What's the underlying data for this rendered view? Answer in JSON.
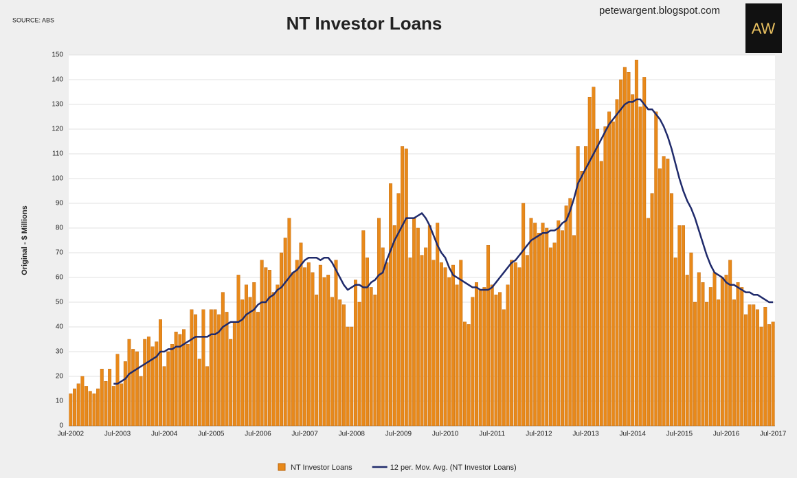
{
  "header": {
    "source": "SOURCE: ABS",
    "website": "petewargent.blogspot.com",
    "logo": "AW"
  },
  "chart_data": {
    "type": "bar",
    "title": "NT Investor Loans",
    "y_label": "Original - $ Millions",
    "categories": [
      "Jul-2002",
      null,
      null,
      null,
      null,
      null,
      null,
      null,
      null,
      null,
      null,
      null,
      "Jul-2003",
      null,
      null,
      null,
      null,
      null,
      null,
      null,
      null,
      null,
      null,
      null,
      "Jul-2004",
      null,
      null,
      null,
      null,
      null,
      null,
      null,
      null,
      null,
      null,
      null,
      "Jul-2005",
      null,
      null,
      null,
      null,
      null,
      null,
      null,
      null,
      null,
      null,
      null,
      "Jul-2006",
      null,
      null,
      null,
      null,
      null,
      null,
      null,
      null,
      null,
      null,
      null,
      "Jul-2007",
      null,
      null,
      null,
      null,
      null,
      null,
      null,
      null,
      null,
      null,
      null,
      "Jul-2008",
      null,
      null,
      null,
      null,
      null,
      null,
      null,
      null,
      null,
      null,
      null,
      "Jul-2009",
      null,
      null,
      null,
      null,
      null,
      null,
      null,
      null,
      null,
      null,
      null,
      "Jul-2010",
      null,
      null,
      null,
      null,
      null,
      null,
      null,
      null,
      null,
      null,
      null,
      "Jul-2011",
      null,
      null,
      null,
      null,
      null,
      null,
      null,
      null,
      null,
      null,
      null,
      "Jul-2012",
      null,
      null,
      null,
      null,
      null,
      null,
      null,
      null,
      null,
      null,
      null,
      "Jul-2013",
      null,
      null,
      null,
      null,
      null,
      null,
      null,
      null,
      null,
      null,
      null,
      "Jul-2014",
      null,
      null,
      null,
      null,
      null,
      null,
      null,
      null,
      null,
      null,
      null,
      "Jul-2015",
      null,
      null,
      null,
      null,
      null,
      null,
      null,
      null,
      null,
      null,
      null,
      "Jul-2016",
      null,
      null,
      null,
      null,
      null,
      null,
      null,
      null,
      null,
      null,
      null,
      "Jul-2017"
    ],
    "series": [
      {
        "name": "NT Investor Loans",
        "type": "bar",
        "color": "#e8891a",
        "values": [
          13,
          15,
          17,
          20,
          16,
          14,
          13,
          15,
          23,
          18,
          23,
          16,
          29,
          17,
          26,
          35,
          31,
          30,
          20,
          35,
          36,
          32,
          34,
          43,
          24,
          30,
          33,
          38,
          37,
          39,
          33,
          47,
          45,
          27,
          47,
          24,
          47,
          47,
          45,
          54,
          46,
          35,
          42,
          61,
          51,
          57,
          52,
          58,
          46,
          67,
          64,
          63,
          54,
          57,
          70,
          76,
          84,
          62,
          67,
          74,
          64,
          66,
          62,
          53,
          65,
          60,
          61,
          52,
          67,
          51,
          49,
          40,
          40,
          59,
          50,
          79,
          68,
          56,
          53,
          84,
          72,
          66,
          98,
          81,
          94,
          113,
          112,
          68,
          84,
          80,
          69,
          72,
          81,
          67,
          82,
          66,
          64,
          60,
          65,
          57,
          67,
          42,
          41,
          52,
          58,
          55,
          56,
          73,
          57,
          53,
          54,
          47,
          57,
          67,
          66,
          64,
          90,
          69,
          84,
          82,
          78,
          82,
          80,
          72,
          74,
          83,
          79,
          89,
          92,
          77,
          113,
          103,
          113,
          133,
          137,
          120,
          107,
          121,
          127,
          123,
          132,
          140,
          145,
          143,
          134,
          148,
          129,
          141,
          84,
          94,
          127,
          104,
          109,
          108,
          94,
          68,
          81,
          81,
          61,
          70,
          50,
          62,
          58,
          50,
          56,
          62,
          51,
          60,
          61,
          67,
          51,
          58,
          56,
          45,
          49,
          49,
          47,
          40,
          48,
          41,
          42
        ]
      },
      {
        "name": "12 per. Mov. Avg. (NT Investor Loans)",
        "type": "line",
        "color": "#1f2a6b",
        "values": [
          null,
          null,
          null,
          null,
          null,
          null,
          null,
          null,
          null,
          null,
          null,
          17,
          17,
          18,
          19,
          21,
          22,
          23,
          24,
          25,
          26,
          27,
          28,
          30,
          30,
          31,
          31,
          32,
          32,
          33,
          34,
          35,
          36,
          36,
          36,
          36,
          37,
          37,
          38,
          40,
          41,
          42,
          42,
          42,
          43,
          45,
          46,
          47,
          49,
          50,
          50,
          52,
          53,
          55,
          56,
          58,
          60,
          62,
          63,
          65,
          67,
          68,
          68,
          68,
          67,
          68,
          68,
          66,
          63,
          60,
          57,
          55,
          56,
          57,
          57,
          56,
          56,
          58,
          59,
          61,
          62,
          67,
          71,
          75,
          78,
          81,
          84,
          84,
          84,
          85,
          86,
          84,
          81,
          77,
          73,
          70,
          68,
          64,
          61,
          60,
          59,
          58,
          57,
          56,
          56,
          55,
          55,
          55,
          56,
          58,
          60,
          62,
          64,
          66,
          67,
          69,
          71,
          73,
          75,
          76,
          77,
          78,
          78,
          79,
          79,
          80,
          82,
          83,
          87,
          92,
          98,
          101,
          104,
          107,
          110,
          113,
          116,
          119,
          122,
          124,
          126,
          128,
          130,
          131,
          131,
          132,
          132,
          130,
          128,
          128,
          126,
          124,
          121,
          117,
          112,
          106,
          100,
          95,
          91,
          88,
          84,
          79,
          74,
          69,
          65,
          62,
          61,
          60,
          58,
          57,
          57,
          56,
          55,
          54,
          54,
          53,
          53,
          52,
          51,
          50,
          50
        ]
      }
    ],
    "ylim": [
      0,
      150
    ],
    "yticks": [
      0,
      10,
      20,
      30,
      40,
      50,
      60,
      70,
      80,
      90,
      100,
      110,
      120,
      130,
      140,
      150
    ],
    "grid": true
  }
}
